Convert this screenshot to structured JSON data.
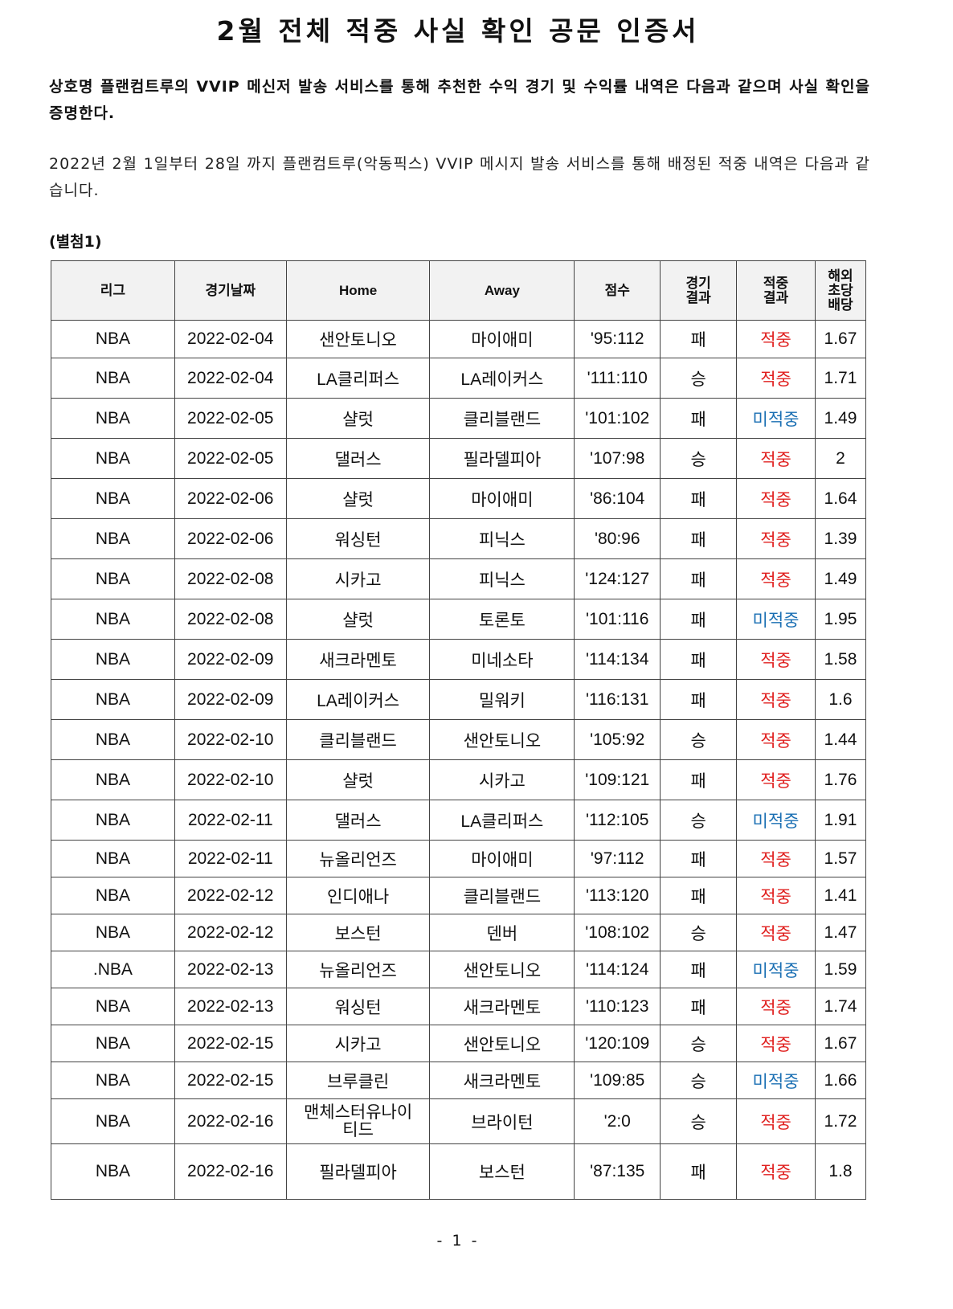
{
  "title": "2월 전체 적중 사실 확인 공문 인증서",
  "paragraph1": "상호명 플랜컴트루의 VVIP 메신저 발송 서비스를 통해 추천한 수익 경기 및 수익률 내역은 다음과 같으며 사실 확인을 증명한다.",
  "paragraph2": "2022년 2월 1일부터 28일 까지 플랜컴트루(악동픽스) VVIP 메시지 발송 서비스를 통해 배정된 적중 내역은 다음과 같습니다.",
  "attachment_label": "(별첨1)",
  "colors": {
    "hit": "#e0201f",
    "miss": "#1a6fb3"
  },
  "table": {
    "headers": [
      "리그",
      "경기날짜",
      "Home",
      "Away",
      "점수",
      "경기\n결과",
      "적중\n결과",
      "해외\n초당\n배당"
    ],
    "rows": [
      [
        "NBA",
        "2022-02-04",
        "샌안토니오",
        "마이애미",
        "'95:112",
        "패",
        "적중",
        "1.67"
      ],
      [
        "NBA",
        "2022-02-04",
        "LA클리퍼스",
        "LA레이커스",
        "'111:110",
        "승",
        "적중",
        "1.71"
      ],
      [
        "NBA",
        "2022-02-05",
        "샬럿",
        "클리블랜드",
        "'101:102",
        "패",
        "미적중",
        "1.49"
      ],
      [
        "NBA",
        "2022-02-05",
        "댈러스",
        "필라델피아",
        "'107:98",
        "승",
        "적중",
        "2"
      ],
      [
        "NBA",
        "2022-02-06",
        "샬럿",
        "마이애미",
        "'86:104",
        "패",
        "적중",
        "1.64"
      ],
      [
        "NBA",
        "2022-02-06",
        "워싱턴",
        "피닉스",
        "'80:96",
        "패",
        "적중",
        "1.39"
      ],
      [
        "NBA",
        "2022-02-08",
        "시카고",
        "피닉스",
        "'124:127",
        "패",
        "적중",
        "1.49"
      ],
      [
        "NBA",
        "2022-02-08",
        "샬럿",
        "토론토",
        "'101:116",
        "패",
        "미적중",
        "1.95"
      ],
      [
        "NBA",
        "2022-02-09",
        "새크라멘토",
        "미네소타",
        "'114:134",
        "패",
        "적중",
        "1.58"
      ],
      [
        "NBA",
        "2022-02-09",
        "LA레이커스",
        "밀워키",
        "'116:131",
        "패",
        "적중",
        "1.6"
      ],
      [
        "NBA",
        "2022-02-10",
        "클리블랜드",
        "샌안토니오",
        "'105:92",
        "승",
        "적중",
        "1.44"
      ],
      [
        "NBA",
        "2022-02-10",
        "샬럿",
        "시카고",
        "'109:121",
        "패",
        "적중",
        "1.76"
      ],
      [
        "NBA",
        "2022-02-11",
        "댈러스",
        "LA클리퍼스",
        "'112:105",
        "승",
        "미적중",
        "1.91"
      ],
      [
        "NBA",
        "2022-02-11",
        "뉴올리언즈",
        "마이애미",
        "'97:112",
        "패",
        "적중",
        "1.57"
      ],
      [
        "NBA",
        "2022-02-12",
        "인디애나",
        "클리블랜드",
        "'113:120",
        "패",
        "적중",
        "1.41"
      ],
      [
        "NBA",
        "2022-02-12",
        "보스턴",
        "덴버",
        "'108:102",
        "승",
        "적중",
        "1.47"
      ],
      [
        ".NBA",
        "2022-02-13",
        "뉴올리언즈",
        "샌안토니오",
        "'114:124",
        "패",
        "미적중",
        "1.59"
      ],
      [
        "NBA",
        "2022-02-13",
        "워싱턴",
        "새크라멘토",
        "'110:123",
        "패",
        "적중",
        "1.74"
      ],
      [
        "NBA",
        "2022-02-15",
        "시카고",
        "샌안토니오",
        "'120:109",
        "승",
        "적중",
        "1.67"
      ],
      [
        "NBA",
        "2022-02-15",
        "브루클린",
        "새크라멘토",
        "'109:85",
        "승",
        "미적중",
        "1.66"
      ],
      [
        "NBA",
        "2022-02-16",
        "맨체스터유나이티드",
        "브라이턴",
        "'2:0",
        "승",
        "적중",
        "1.72"
      ],
      [
        "NBA",
        "2022-02-16",
        "필라델피아",
        "보스턴",
        "'87:135",
        "패",
        "적중",
        "1.8"
      ]
    ]
  },
  "footer": "- 1 -"
}
